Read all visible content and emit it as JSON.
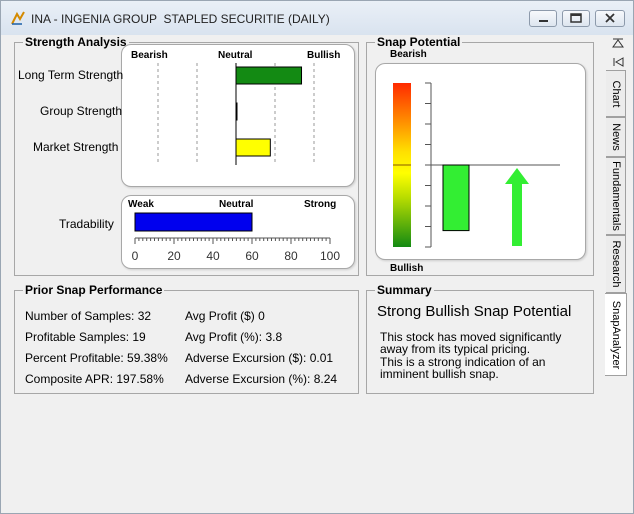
{
  "window": {
    "title": "INA - INGENIA GROUP  STAPLED SECURITIE (DAILY)"
  },
  "strength": {
    "title": "Strength Analysis",
    "header": {
      "bearish": "Bearish",
      "neutral": "Neutral",
      "bullish": "Bullish"
    },
    "rows": [
      {
        "label": "Long Term Strength",
        "value": 0.84,
        "color": "#138a13"
      },
      {
        "label": "Group Strength",
        "value": 0.0,
        "color": "#000000"
      },
      {
        "label": "Market Strength",
        "value": 0.44,
        "color": "#ffff00"
      }
    ],
    "tradability": {
      "label": "Tradability",
      "weak": "Weak",
      "neutral": "Neutral",
      "strong": "Strong",
      "value": 60,
      "color": "#0000ee",
      "ticks": [
        "0",
        "20",
        "40",
        "60",
        "80",
        "100"
      ]
    }
  },
  "snap": {
    "title": "Snap Potential",
    "top_label": "Bearish",
    "bottom_label": "Bullish",
    "bar_value": -0.8,
    "bar_color": "#33ee33",
    "arrow_color": "#33ee33",
    "arrow_direction": "up"
  },
  "prior": {
    "title": "Prior Snap Performance",
    "left": [
      "Number of Samples: 32",
      "Profitable Samples: 19",
      "Percent Profitable: 59.38%",
      "Composite APR: 197.58%"
    ],
    "right": [
      "Avg Profit ($) 0",
      "Avg Profit (%): 3.8",
      "Adverse Excursion ($): 0.01",
      "Adverse Excursion (%): 8.24"
    ]
  },
  "summary": {
    "title": "Summary",
    "headline": "Strong Bullish Snap Potential",
    "body": [
      "This stock has moved significantly",
      "away from its typical pricing.",
      "This is a strong indication of an",
      "imminent bullish snap."
    ]
  },
  "tabs": [
    "Chart",
    "News",
    "Fundamentals",
    "Research",
    "SnapAnalyzer"
  ],
  "active_tab": "SnapAnalyzer"
}
